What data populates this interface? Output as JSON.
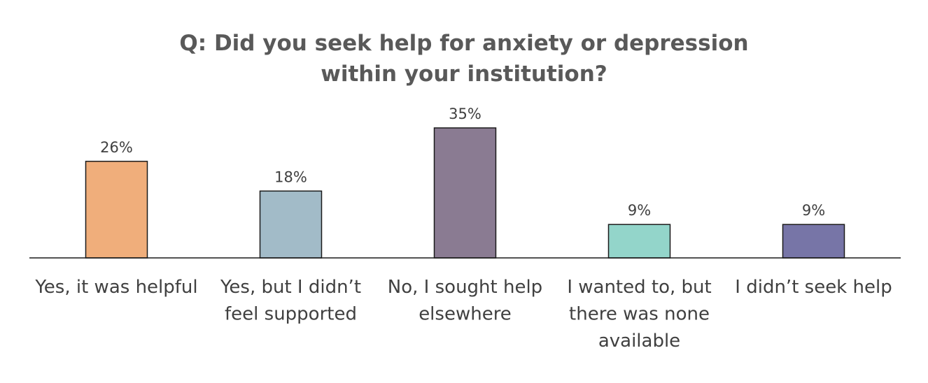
{
  "chart_data": {
    "type": "bar",
    "title": "Q: Did you seek help for anxiety or depression within your institution?",
    "categories": [
      "Yes, it was helpful",
      "Yes, but I didn’t feel supported",
      "No, I sought help elsewhere",
      "I wanted to, but there was none available",
      "I didn’t seek help"
    ],
    "category_lines": [
      [
        "Yes, it was helpful"
      ],
      [
        "Yes, but I didn’t",
        "feel supported"
      ],
      [
        "No, I sought help",
        "elsewhere"
      ],
      [
        "I wanted to, but",
        "there was none",
        "available"
      ],
      [
        "I didn’t seek help"
      ]
    ],
    "values": [
      26,
      18,
      35,
      9,
      9
    ],
    "data_labels": [
      "26%",
      "18%",
      "35%",
      "9%",
      "9%"
    ],
    "colors": [
      "#F0AE7B",
      "#A2BBC8",
      "#8A7B92",
      "#93D5CA",
      "#7775A7"
    ],
    "xlabel": "",
    "ylabel": "",
    "ylim": [
      0,
      35
    ],
    "grid": false,
    "legend": "none"
  }
}
